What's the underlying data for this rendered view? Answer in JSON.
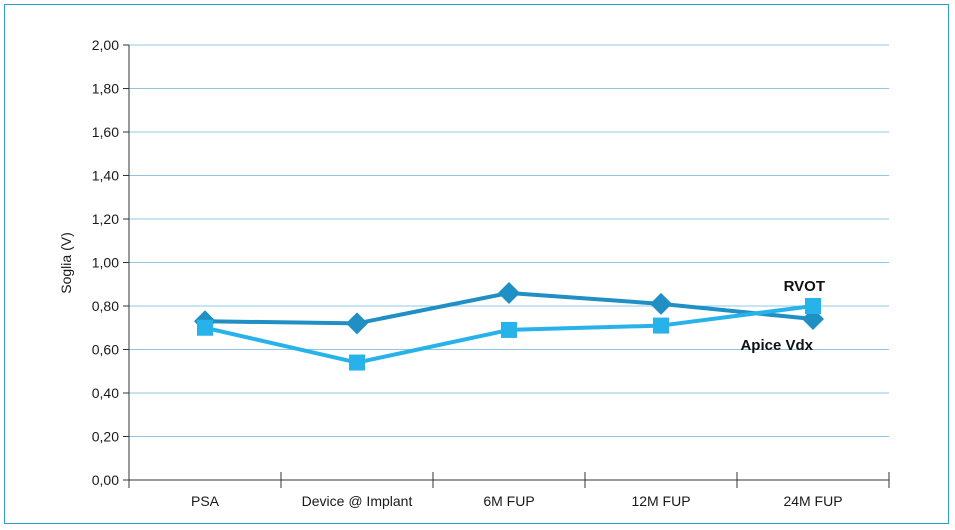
{
  "chart_data": {
    "type": "line",
    "title": "",
    "xlabel": "",
    "ylabel": "Soglia (V)",
    "categories": [
      "PSA",
      "Device @ Implant",
      "6M FUP",
      "12M FUP",
      "24M FUP"
    ],
    "ylim": [
      0,
      2
    ],
    "yticks": [
      "0,00",
      "0,20",
      "0,40",
      "0,60",
      "0,80",
      "1,00",
      "1,20",
      "1,40",
      "1,60",
      "1,80",
      "2,00"
    ],
    "grid": true,
    "series": [
      {
        "name": "RVOT",
        "marker": "diamond",
        "color": "#1f8fc4",
        "values": [
          0.73,
          0.72,
          0.86,
          0.81,
          0.74
        ]
      },
      {
        "name": "Apice Vdx",
        "marker": "square",
        "color": "#27b3ea",
        "values": [
          0.7,
          0.54,
          0.69,
          0.71,
          0.8
        ]
      }
    ]
  }
}
